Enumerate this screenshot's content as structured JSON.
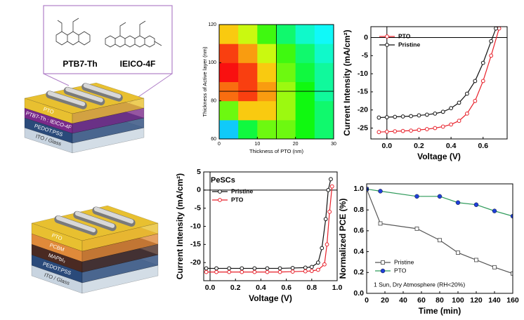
{
  "devices": [
    {
      "molecules": [
        "PTB7-Th",
        "IEICO-4F"
      ],
      "layers": [
        "PTO",
        "PTB7-Th : IEICO-4F",
        "PEDOT:PSS",
        "ITO / Glass"
      ]
    },
    {
      "layers": [
        "PTO",
        "PCBM",
        "MAPbI₃",
        "PEDOT:PSS",
        "ITO / Glass"
      ]
    }
  ],
  "chart_data": [
    {
      "type": "contour",
      "xlabel": "Thickness of PTO (nm)",
      "ylabel": "Thickness of Active layer (nm)",
      "xlim": [
        0,
        30
      ],
      "ylim": [
        60,
        120
      ],
      "xticks": [
        0,
        10,
        20,
        30
      ],
      "yticks": [
        60,
        80,
        100,
        120
      ],
      "x": [
        2.5,
        7.5,
        12.5,
        17.5,
        22.5,
        27.5
      ],
      "y": [
        65,
        75,
        85,
        95,
        105,
        115
      ],
      "z": [
        [
          2,
          4.5,
          6,
          6,
          5,
          4
        ],
        [
          6,
          8,
          8,
          6.5,
          5,
          4
        ],
        [
          9,
          9.5,
          8.5,
          6.5,
          5,
          3.5
        ],
        [
          10,
          9.5,
          8,
          6,
          4.5,
          3.5
        ],
        [
          9.5,
          8.5,
          7,
          5.5,
          4,
          3
        ],
        [
          8,
          7,
          5.5,
          4,
          3,
          2.5
        ]
      ],
      "zlim": [
        0,
        10
      ],
      "crosshair": {
        "x": 15,
        "y": 85
      }
    },
    {
      "type": "line",
      "xlabel": "Voltage (V)",
      "ylabel": "Current Intensity (mA/cm²)",
      "xlim": [
        -0.1,
        0.75
      ],
      "ylim": [
        -28,
        3
      ],
      "xticks": [
        {
          "value": 0,
          "label": "0.0"
        },
        0.2,
        0.4,
        0.6
      ],
      "yticks": [
        -25,
        -20,
        -15,
        -10,
        -5,
        0
      ],
      "zero_lines": true,
      "legend": "upper left",
      "series": [
        {
          "name": "PTO",
          "color": "#e8202a",
          "marker": "circle",
          "x": [
            -0.05,
            0,
            0.05,
            0.1,
            0.15,
            0.2,
            0.25,
            0.3,
            0.35,
            0.4,
            0.45,
            0.5,
            0.55,
            0.6,
            0.65,
            0.7
          ],
          "values": [
            -26.1,
            -26,
            -25.9,
            -25.8,
            -25.7,
            -25.5,
            -25.3,
            -25,
            -24.6,
            -24,
            -23,
            -21,
            -17.5,
            -12,
            -5,
            2.5
          ]
        },
        {
          "name": "Pristine",
          "color": "#111111",
          "marker": "circle",
          "x": [
            -0.05,
            0,
            0.05,
            0.1,
            0.15,
            0.2,
            0.25,
            0.3,
            0.35,
            0.4,
            0.45,
            0.5,
            0.55,
            0.6,
            0.65,
            0.68
          ],
          "values": [
            -22.1,
            -22,
            -21.9,
            -21.8,
            -21.7,
            -21.5,
            -21.3,
            -21,
            -20.5,
            -19.5,
            -18,
            -15.5,
            -12,
            -7,
            -1,
            2.5
          ]
        }
      ]
    },
    {
      "type": "line",
      "xlabel": "Voltage (V)",
      "ylabel": "Current Intensity (mA/cm²)",
      "xlim": [
        -0.05,
        1.0
      ],
      "ylim": [
        -25,
        5
      ],
      "xticks": [
        {
          "value": 0,
          "label": "0.0"
        },
        0.2,
        0.4,
        0.6,
        0.8,
        {
          "value": 1,
          "label": "1.0"
        }
      ],
      "yticks": [
        -20,
        -15,
        -10,
        -5,
        0,
        5
      ],
      "zero_lines": true,
      "legend": "upper left",
      "annotation": "PeSCs",
      "series": [
        {
          "name": "Pristine",
          "color": "#111111",
          "marker": "circle",
          "x": [
            -0.03,
            0.05,
            0.15,
            0.25,
            0.35,
            0.45,
            0.55,
            0.65,
            0.75,
            0.8,
            0.85,
            0.88,
            0.91,
            0.93,
            0.95
          ],
          "values": [
            -21.6,
            -21.6,
            -21.6,
            -21.6,
            -21.6,
            -21.6,
            -21.6,
            -21.5,
            -21.4,
            -21.2,
            -20,
            -16,
            -8,
            0,
            3
          ]
        },
        {
          "name": "PTO",
          "color": "#e8202a",
          "marker": "circle",
          "x": [
            -0.03,
            0.05,
            0.15,
            0.25,
            0.35,
            0.45,
            0.55,
            0.65,
            0.75,
            0.8,
            0.85,
            0.9,
            0.92,
            0.94,
            0.96
          ],
          "values": [
            -22.6,
            -22.6,
            -22.6,
            -22.6,
            -22.6,
            -22.6,
            -22.6,
            -22.5,
            -22.4,
            -22.3,
            -22,
            -20.5,
            -15,
            -6,
            1
          ]
        }
      ]
    },
    {
      "type": "line",
      "xlabel": "Time (min)",
      "ylabel": "Normalized PCE (%)",
      "xlim": [
        0,
        160
      ],
      "ylim": [
        0,
        1.05
      ],
      "xticks": [
        0,
        20,
        40,
        60,
        80,
        100,
        120,
        140,
        160
      ],
      "yticks": [
        {
          "value": 0,
          "label": "0.0"
        },
        0.2,
        0.4,
        0.6,
        0.8,
        {
          "value": 1,
          "label": "1.0"
        }
      ],
      "legend": "lower left",
      "annotation": "1 Sun, Dry Atmosphere (RH<20%)",
      "series": [
        {
          "name": "Pristine",
          "color": "#555555",
          "marker": "square",
          "x": [
            0,
            15,
            55,
            80,
            100,
            120,
            140,
            160
          ],
          "values": [
            1.0,
            0.67,
            0.62,
            0.51,
            0.39,
            0.32,
            0.25,
            0.19
          ]
        },
        {
          "name": "PTO",
          "color": "#1f3fd8",
          "line_color": "#2e9a5a",
          "marker": "circle-filled",
          "x": [
            0,
            15,
            55,
            80,
            100,
            120,
            140,
            160
          ],
          "values": [
            1.0,
            0.98,
            0.93,
            0.93,
            0.87,
            0.85,
            0.79,
            0.74
          ]
        }
      ]
    }
  ]
}
